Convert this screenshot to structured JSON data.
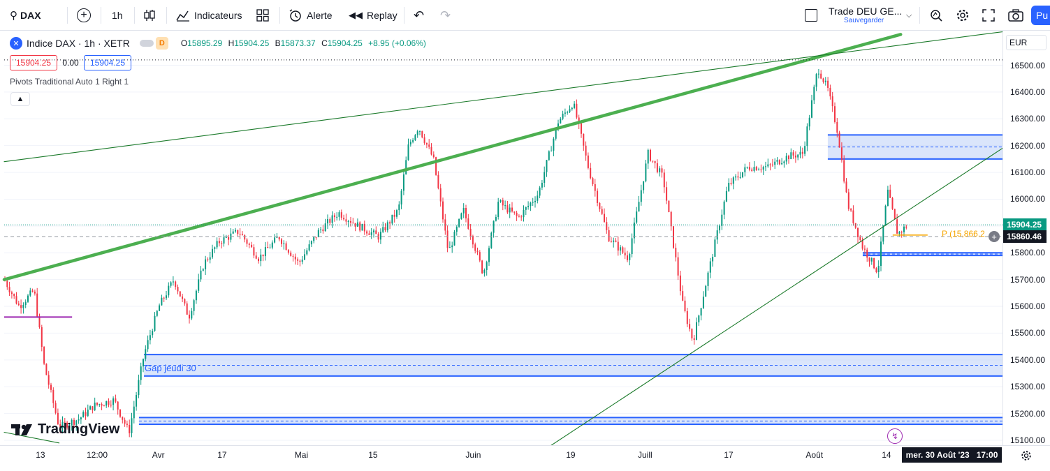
{
  "toolbar": {
    "symbol": "DAX",
    "interval": "1h",
    "indicators_label": "Indicateurs",
    "alert_label": "Alerte",
    "replay_label": "Replay",
    "layout_name": "Trade DEU GE...",
    "layout_save": "Sauvegarder",
    "publish_label": "Pu"
  },
  "legend": {
    "title": "Indice DAX · 1h · XETR",
    "badge": "D",
    "o_label": "O",
    "o": "15895.29",
    "h_label": "H",
    "h": "15904.25",
    "b_label": "B",
    "b": "15873.37",
    "c_label": "C",
    "c": "15904.25",
    "change": "+8.95 (+0.06%)",
    "bid": "15904.25",
    "spread": "0.00",
    "ask": "15904.25",
    "pivots": "Pivots Traditional Auto 1 Right 1"
  },
  "currency": "EUR",
  "annotations": {
    "gap": "Gap jeudi 30",
    "pivot": "P (15,866.2"
  },
  "price_axis": {
    "last_price": "15904.25",
    "crosshair_price": "15860.46",
    "ticks": [
      "16500.00",
      "16400.00",
      "16300.00",
      "16200.00",
      "16100.00",
      "16000.00",
      "15900.00",
      "15800.00",
      "15700.00",
      "15600.00",
      "15500.00",
      "15400.00",
      "15300.00",
      "15200.00",
      "15100.00"
    ]
  },
  "time_axis": {
    "ticks": [
      "13",
      "12:00",
      "Avr",
      "17",
      "Mai",
      "15",
      "Juin",
      "19",
      "Juill",
      "17",
      "Août",
      "14"
    ],
    "crosshair_time": "mer. 30 Août '23   17:00"
  },
  "brand": "TradingView",
  "colors": {
    "up": "#089981",
    "down": "#f23645",
    "trend_thick": "#4caf50",
    "trend_thin": "#1b7a2a",
    "zone_fill": "#bbd0f8",
    "zone_border": "#2962ff",
    "pivot": "#f7a600",
    "magenta": "#9c27b0",
    "last_price_bg": "#089981",
    "crosshair_bg": "#131722"
  },
  "chart_data": {
    "type": "candlestick",
    "symbol": "Indice DAX",
    "interval": "1h",
    "ylim": [
      15080,
      16560
    ],
    "x_ticks": [
      "13",
      "12:00",
      "Avr",
      "17",
      "Mai",
      "15",
      "Juin",
      "19",
      "Juill",
      "17",
      "Août",
      "14"
    ],
    "y_ticks": [
      16500,
      16400,
      16300,
      16200,
      16100,
      16000,
      15900,
      15800,
      15700,
      15600,
      15500,
      15400,
      15300,
      15200,
      15100
    ],
    "trajectory": [
      {
        "t": 0.0,
        "p": 15700
      },
      {
        "t": 0.015,
        "p": 15600
      },
      {
        "t": 0.03,
        "p": 15660
      },
      {
        "t": 0.04,
        "p": 15380
      },
      {
        "t": 0.055,
        "p": 15150
      },
      {
        "t": 0.075,
        "p": 15180
      },
      {
        "t": 0.09,
        "p": 15230
      },
      {
        "t": 0.11,
        "p": 15250
      },
      {
        "t": 0.125,
        "p": 15130
      },
      {
        "t": 0.14,
        "p": 15420
      },
      {
        "t": 0.155,
        "p": 15600
      },
      {
        "t": 0.17,
        "p": 15700
      },
      {
        "t": 0.185,
        "p": 15560
      },
      {
        "t": 0.2,
        "p": 15760
      },
      {
        "t": 0.215,
        "p": 15840
      },
      {
        "t": 0.235,
        "p": 15880
      },
      {
        "t": 0.255,
        "p": 15780
      },
      {
        "t": 0.275,
        "p": 15860
      },
      {
        "t": 0.295,
        "p": 15760
      },
      {
        "t": 0.315,
        "p": 15880
      },
      {
        "t": 0.335,
        "p": 15950
      },
      {
        "t": 0.355,
        "p": 15900
      },
      {
        "t": 0.375,
        "p": 15860
      },
      {
        "t": 0.395,
        "p": 15960
      },
      {
        "t": 0.405,
        "p": 16200
      },
      {
        "t": 0.415,
        "p": 16270
      },
      {
        "t": 0.43,
        "p": 16150
      },
      {
        "t": 0.445,
        "p": 15800
      },
      {
        "t": 0.46,
        "p": 15960
      },
      {
        "t": 0.48,
        "p": 15720
      },
      {
        "t": 0.495,
        "p": 15990
      },
      {
        "t": 0.515,
        "p": 15930
      },
      {
        "t": 0.535,
        "p": 16020
      },
      {
        "t": 0.555,
        "p": 16290
      },
      {
        "t": 0.57,
        "p": 16360
      },
      {
        "t": 0.585,
        "p": 16120
      },
      {
        "t": 0.605,
        "p": 15860
      },
      {
        "t": 0.625,
        "p": 15780
      },
      {
        "t": 0.645,
        "p": 16170
      },
      {
        "t": 0.66,
        "p": 16080
      },
      {
        "t": 0.68,
        "p": 15600
      },
      {
        "t": 0.69,
        "p": 15470
      },
      {
        "t": 0.705,
        "p": 15720
      },
      {
        "t": 0.725,
        "p": 16050
      },
      {
        "t": 0.745,
        "p": 16120
      },
      {
        "t": 0.765,
        "p": 16120
      },
      {
        "t": 0.785,
        "p": 16160
      },
      {
        "t": 0.8,
        "p": 16170
      },
      {
        "t": 0.815,
        "p": 16490
      },
      {
        "t": 0.825,
        "p": 16410
      },
      {
        "t": 0.835,
        "p": 16250
      },
      {
        "t": 0.845,
        "p": 15980
      },
      {
        "t": 0.86,
        "p": 15820
      },
      {
        "t": 0.875,
        "p": 15730
      },
      {
        "t": 0.885,
        "p": 16030
      },
      {
        "t": 0.895,
        "p": 15870
      },
      {
        "t": 0.905,
        "p": 15904
      }
    ],
    "trend_lines": [
      {
        "style": "thick",
        "from": [
          0.0,
          15700
        ],
        "to": [
          0.898,
          16615
        ]
      },
      {
        "style": "thin",
        "from": [
          0.0,
          16140
        ],
        "to": [
          1.0,
          16625
        ]
      },
      {
        "style": "thin",
        "from": [
          0.525,
          15025
        ],
        "to": [
          1.0,
          16190
        ]
      },
      {
        "style": "thin",
        "from": [
          0.0,
          15130
        ],
        "to": [
          0.055,
          15090
        ]
      }
    ],
    "zones": [
      {
        "label": "",
        "from_t": 0.825,
        "to_t": 1.0,
        "top": 16240,
        "bottom": 16150,
        "mid": 16195
      },
      {
        "label": "",
        "from_t": 0.86,
        "to_t": 1.0,
        "top": 15800,
        "bottom": 15790,
        "mid": 15795
      },
      {
        "label": "Gap jeudi 30",
        "from_t": 0.14,
        "to_t": 1.0,
        "top": 15420,
        "bottom": 15340,
        "mid": 15380
      },
      {
        "label": "",
        "from_t": 0.135,
        "to_t": 1.0,
        "top": 15185,
        "bottom": 15160,
        "mid": 15172
      }
    ],
    "pivot": {
      "label": "P",
      "value": 15866.2
    },
    "last_price": 15904.25,
    "crosshair_price": 15860.46,
    "magenta_level": {
      "from_t": 0.0,
      "to_t": 0.068,
      "value": 15560
    }
  }
}
